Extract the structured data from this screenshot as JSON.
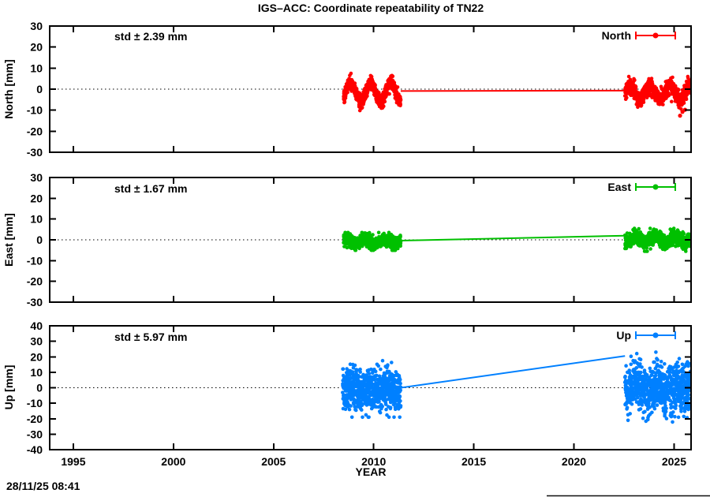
{
  "title": "IGS–ACC: Coordinate repeatability of TN22",
  "timestamp": "28/11/25 08:41",
  "chart_data": {
    "type": "scatter",
    "description": "Three stacked panels (North/East/Up) of daily GNSS coordinate repeatability for station TN22; dense daily point clusters 2008.5–2011.35 and 2022.55–2025.83 joined by a single line across the data gap; dotted zero reference line in each panel.",
    "x": {
      "label": "YEAR",
      "lim": [
        1993.82,
        2025.85
      ],
      "ticks": [
        1995,
        2000,
        2005,
        2010,
        2015,
        2020,
        2025
      ]
    },
    "panels": [
      {
        "name": "North",
        "ylabel": "North [mm]",
        "std_label": "std ± 2.39 mm",
        "legend_label": "North",
        "color": "#ff0000",
        "ylim": [
          -30,
          30
        ],
        "yticks": [
          -30,
          -20,
          -10,
          0,
          10,
          20,
          30
        ],
        "zero_line": true,
        "clusters": [
          {
            "x_start": 2008.5,
            "x_end": 2011.35,
            "n": 720,
            "mean": -1.3,
            "annual_amp": 4.3,
            "annual_phase": 2008.6,
            "noise_sd": 1.6,
            "clamp": [
              -10.5,
              7.5
            ],
            "seed": 101
          },
          {
            "x_start": 2022.55,
            "x_end": 2025.83,
            "n": 760,
            "mean": -1.6,
            "annual_amp": 3.0,
            "annual_phase": 2022.55,
            "noise_sd": 1.9,
            "clamp": [
              -9.5,
              6.0
            ],
            "seed": 102
          }
        ],
        "outliers": [
          [
            2025.3,
            -12.6
          ],
          [
            2025.42,
            -10.8
          ],
          [
            2025.55,
            -9.8
          ]
        ],
        "line_segments": [
          [
            [
              2011.35,
              -0.9
            ],
            [
              2022.55,
              -0.7
            ]
          ]
        ]
      },
      {
        "name": "East",
        "ylabel": "East [mm]",
        "std_label": "std ± 1.67 mm",
        "legend_label": "East",
        "color": "#00c000",
        "ylim": [
          -30,
          30
        ],
        "yticks": [
          -30,
          -20,
          -10,
          0,
          10,
          20,
          30
        ],
        "zero_line": true,
        "clusters": [
          {
            "x_start": 2008.5,
            "x_end": 2011.35,
            "n": 720,
            "mean": -0.7,
            "annual_amp": 1.1,
            "annual_phase": 2008.3,
            "noise_sd": 1.5,
            "clamp": [
              -5.0,
              3.5
            ],
            "seed": 201
          },
          {
            "x_start": 2022.55,
            "x_end": 2025.83,
            "n": 760,
            "mean": 0.2,
            "annual_amp": 1.4,
            "annual_phase": 2022.8,
            "noise_sd": 1.7,
            "clamp": [
              -5.5,
              5.5
            ],
            "seed": 202
          }
        ],
        "outliers": [],
        "line_segments": [
          [
            [
              2011.35,
              -0.4
            ],
            [
              2022.55,
              2.0
            ]
          ]
        ]
      },
      {
        "name": "Up",
        "ylabel": "Up [mm]",
        "std_label": "std ± 5.97 mm",
        "legend_label": "Up",
        "color": "#0080ff",
        "ylim": [
          -40,
          40
        ],
        "yticks": [
          -40,
          -30,
          -20,
          -10,
          0,
          10,
          20,
          30,
          40
        ],
        "zero_line": true,
        "clusters": [
          {
            "x_start": 2008.45,
            "x_end": 2011.35,
            "n": 740,
            "mean": -1.0,
            "annual_amp": 1.5,
            "annual_phase": 2008.6,
            "noise_sd": 6.8,
            "clamp": [
              -19.0,
              17.5
            ],
            "seed": 301
          },
          {
            "x_start": 2022.55,
            "x_end": 2025.83,
            "n": 780,
            "mean": 0.5,
            "annual_amp": 2.0,
            "annual_phase": 2022.9,
            "noise_sd": 7.8,
            "clamp": [
              -22.5,
              23.0
            ],
            "seed": 302
          }
        ],
        "outliers": [],
        "line_segments": [
          [
            [
              2011.35,
              0.0
            ],
            [
              2022.55,
              20.5
            ]
          ]
        ]
      }
    ]
  }
}
